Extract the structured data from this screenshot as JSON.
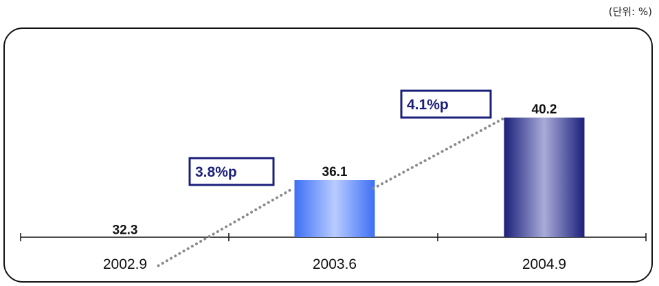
{
  "unit_label": "(단위: %)",
  "chart_data": {
    "type": "bar",
    "categories": [
      "2002.9",
      "2003.6",
      "2004.9"
    ],
    "values": [
      32.3,
      36.1,
      40.2
    ],
    "value_labels": [
      "32.3",
      "36.1",
      "40.2"
    ],
    "annotations": [
      {
        "text": "3.8%p",
        "between": [
          "2002.9",
          "2003.6"
        ]
      },
      {
        "text": "4.1%p",
        "between": [
          "2003.6",
          "2004.9"
        ]
      }
    ],
    "trend_line": "dotted",
    "colors": [
      "#999999",
      "#4f7ffd",
      "#1b1f7a"
    ],
    "annotation_color": "#1b1f7a"
  }
}
